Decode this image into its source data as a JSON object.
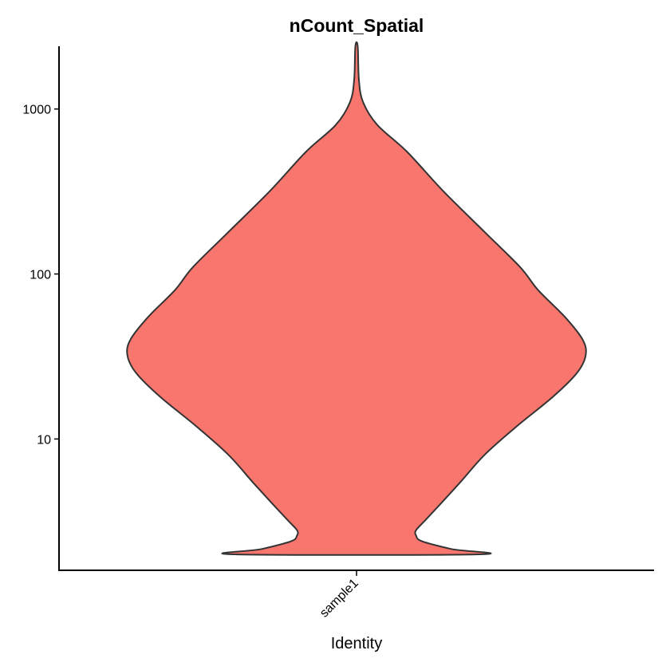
{
  "chart_data": {
    "type": "violin",
    "title": "nCount_Spatial",
    "xlabel": "Identity",
    "ylabel": "",
    "y_scale": "log10",
    "ylim": [
      1.6,
      2400
    ],
    "y_ticks": [
      10,
      100,
      1000
    ],
    "y_tick_labels": [
      "10",
      "100",
      "1000"
    ],
    "categories": [
      "sample1"
    ],
    "fill_color": "#F8766D",
    "outline_color": "#333333",
    "grid": false,
    "legend": "none",
    "series": [
      {
        "category": "sample1",
        "y_range": [
          2,
          2400
        ],
        "density_profile": [
          {
            "y": 2.0,
            "width": 0.41
          },
          {
            "y": 2.15,
            "width": 0.32
          },
          {
            "y": 2.4,
            "width": 0.22
          },
          {
            "y": 2.6,
            "width": 0.2
          },
          {
            "y": 2.8,
            "width": 0.2
          },
          {
            "y": 3.2,
            "width": 0.23
          },
          {
            "y": 4.0,
            "width": 0.28
          },
          {
            "y": 5.5,
            "width": 0.35
          },
          {
            "y": 8.0,
            "width": 0.43
          },
          {
            "y": 12.0,
            "width": 0.54
          },
          {
            "y": 18.0,
            "width": 0.66
          },
          {
            "y": 25.0,
            "width": 0.74
          },
          {
            "y": 32.0,
            "width": 0.77
          },
          {
            "y": 40.0,
            "width": 0.76
          },
          {
            "y": 55.0,
            "width": 0.7
          },
          {
            "y": 80.0,
            "width": 0.61
          },
          {
            "y": 110.0,
            "width": 0.55
          },
          {
            "y": 180.0,
            "width": 0.43
          },
          {
            "y": 320.0,
            "width": 0.29
          },
          {
            "y": 550.0,
            "width": 0.17
          },
          {
            "y": 800.0,
            "width": 0.07
          },
          {
            "y": 1100.0,
            "width": 0.022
          },
          {
            "y": 1500.0,
            "width": 0.008
          },
          {
            "y": 2400.0,
            "width": 0.004
          }
        ]
      }
    ]
  }
}
